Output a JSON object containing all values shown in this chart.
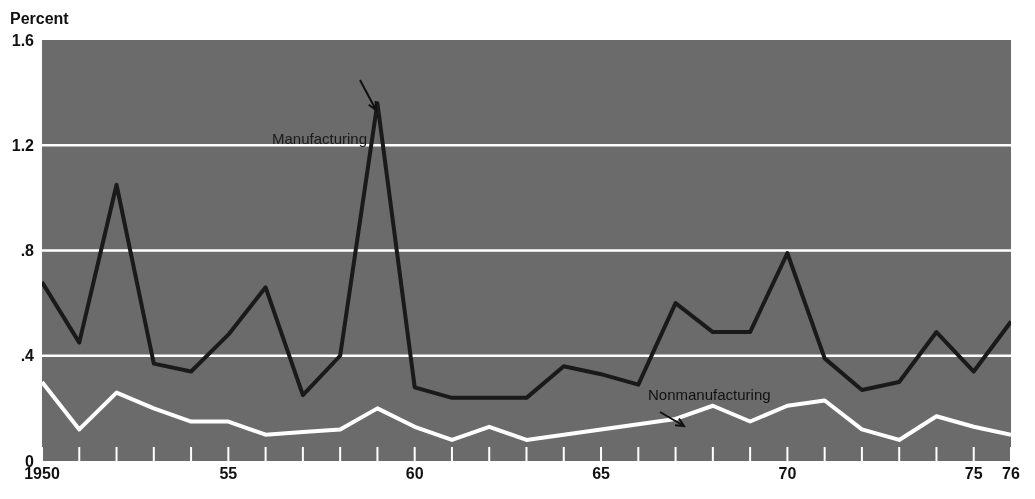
{
  "chart_data": {
    "type": "line",
    "ylabel": "Percent",
    "x": [
      1950,
      1951,
      1952,
      1953,
      1954,
      1955,
      1956,
      1957,
      1958,
      1959,
      1960,
      1961,
      1962,
      1963,
      1964,
      1965,
      1966,
      1967,
      1968,
      1969,
      1970,
      1971,
      1972,
      1973,
      1974,
      1975,
      1976
    ],
    "series": [
      {
        "name": "Manufacturing",
        "color": "#1a1a1a",
        "values": [
          0.68,
          0.45,
          1.05,
          0.37,
          0.34,
          0.48,
          0.66,
          0.25,
          0.4,
          1.36,
          0.28,
          0.24,
          0.24,
          0.24,
          0.36,
          0.33,
          0.29,
          0.6,
          0.49,
          0.49,
          0.79,
          0.39,
          0.27,
          0.3,
          0.49,
          0.34,
          0.53
        ]
      },
      {
        "name": "Nonmanufacturing",
        "color": "#ffffff",
        "values": [
          0.3,
          0.12,
          0.26,
          0.2,
          0.15,
          0.15,
          0.1,
          0.11,
          0.12,
          0.2,
          0.13,
          0.08,
          0.13,
          0.08,
          0.1,
          0.12,
          0.14,
          0.16,
          0.21,
          0.15,
          0.21,
          0.23,
          0.12,
          0.08,
          0.17,
          0.13,
          0.1
        ]
      }
    ],
    "xlim": [
      1950,
      1976
    ],
    "xticks": [
      {
        "value": 1950,
        "label": "1950"
      },
      {
        "value": 1951,
        "label": null
      },
      {
        "value": 1952,
        "label": null
      },
      {
        "value": 1953,
        "label": null
      },
      {
        "value": 1954,
        "label": null
      },
      {
        "value": 1955,
        "label": "55"
      },
      {
        "value": 1956,
        "label": null
      },
      {
        "value": 1957,
        "label": null
      },
      {
        "value": 1958,
        "label": null
      },
      {
        "value": 1959,
        "label": null
      },
      {
        "value": 1960,
        "label": "60"
      },
      {
        "value": 1961,
        "label": null
      },
      {
        "value": 1962,
        "label": null
      },
      {
        "value": 1963,
        "label": null
      },
      {
        "value": 1964,
        "label": null
      },
      {
        "value": 1965,
        "label": "65"
      },
      {
        "value": 1966,
        "label": null
      },
      {
        "value": 1967,
        "label": null
      },
      {
        "value": 1968,
        "label": null
      },
      {
        "value": 1969,
        "label": null
      },
      {
        "value": 1970,
        "label": "70"
      },
      {
        "value": 1971,
        "label": null
      },
      {
        "value": 1972,
        "label": null
      },
      {
        "value": 1973,
        "label": null
      },
      {
        "value": 1974,
        "label": null
      },
      {
        "value": 1975,
        "label": "75"
      },
      {
        "value": 1976,
        "label": "76"
      }
    ],
    "ylim": [
      0,
      1.6
    ],
    "yticks": [
      {
        "value": 0,
        "label": "0"
      },
      {
        "value": 0.4,
        "label": ".4"
      },
      {
        "value": 0.8,
        "label": ".8"
      },
      {
        "value": 1.2,
        "label": "1.2"
      },
      {
        "value": 1.6,
        "label": "1.6"
      }
    ],
    "grid": "y",
    "legend": false,
    "marker": "none",
    "line_style": "solid"
  }
}
